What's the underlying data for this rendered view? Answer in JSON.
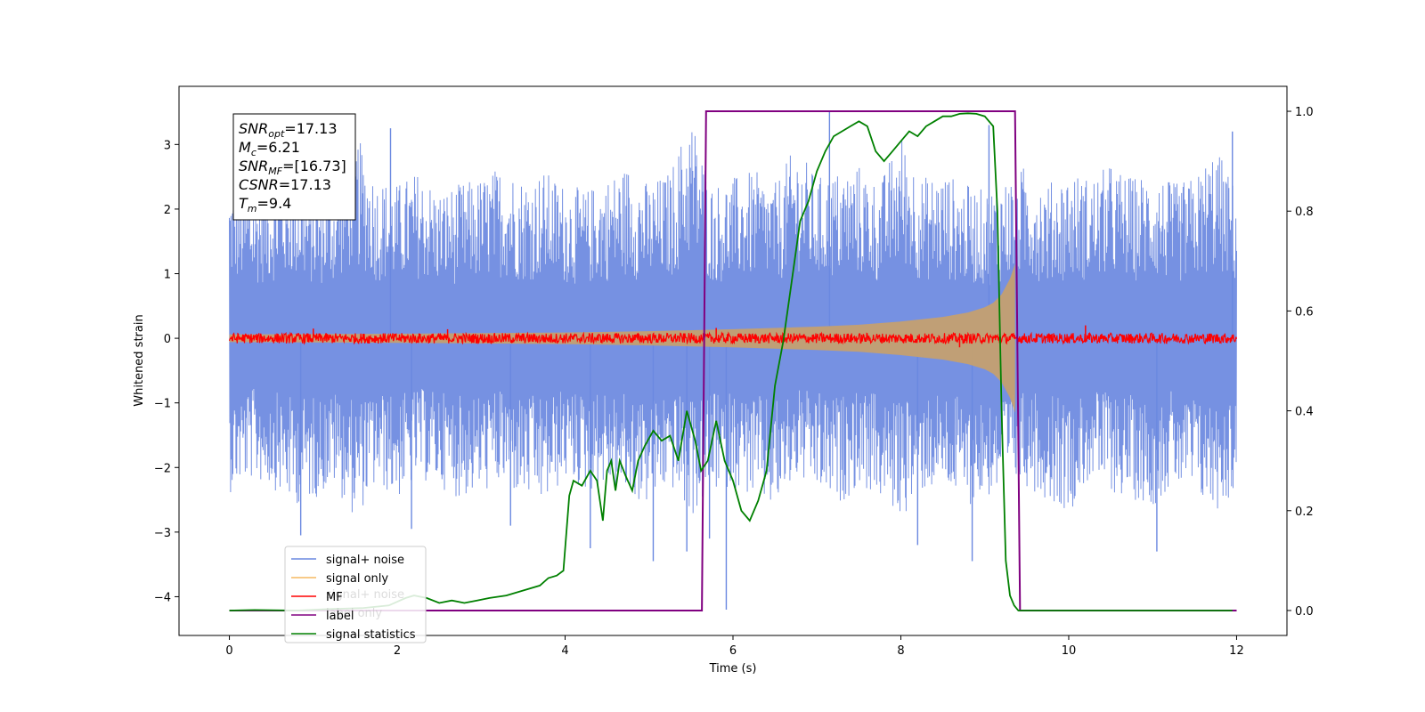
{
  "chart_data": {
    "type": "line",
    "xlabel": "Time (s)",
    "ylabel": "Whitened strain",
    "xlim": [
      -0.6,
      12.6
    ],
    "ylim": [
      -4.6,
      3.9
    ],
    "y2lim": [
      -0.05,
      1.05
    ],
    "x_ticks": [
      0,
      2,
      4,
      6,
      8,
      10,
      12
    ],
    "y_ticks": [
      -4,
      -3,
      -2,
      -1,
      0,
      1,
      2,
      3
    ],
    "y2_ticks": [
      0.0,
      0.2,
      0.4,
      0.6,
      0.8,
      1.0
    ],
    "x_tick_labels": [
      "0",
      "2",
      "4",
      "6",
      "8",
      "10",
      "12"
    ],
    "y_tick_labels": [
      "−4",
      "−3",
      "−2",
      "−1",
      "0",
      "1",
      "2",
      "3"
    ],
    "y2_tick_labels": [
      "0.0",
      "0.2",
      "0.4",
      "0.6",
      "0.8",
      "1.0"
    ],
    "grid": false,
    "legend_position": "lower-left",
    "colors": {
      "signal_noise": "#6a88e0",
      "signal_only": "#f5b860",
      "signal_only_fill": "#c4a070",
      "mf": "#ff0000",
      "label": "#800080",
      "signal_statistics": "#008000"
    },
    "series": [
      {
        "name": "signal+ noise",
        "axis": "left",
        "x_range": [
          0,
          12
        ],
        "band_min": [
          -2.4,
          -2.2,
          -2.3,
          -2.6,
          -2.5,
          -2.3,
          -2.8,
          -2.3,
          -2.5,
          -2.2,
          -2.3,
          -2.5,
          -2.4,
          -2.3,
          -2.5,
          -2.6,
          -2.2,
          -2.4,
          -2.3,
          -2.5,
          -2.6,
          -2.3,
          -2.8,
          -2.4,
          -2.3,
          -2.5,
          -2.7,
          -2.2,
          -2.4,
          -2.6,
          -2.3,
          -2.5,
          -2.8,
          -2.4,
          -2.3,
          -2.6,
          -2.5,
          -2.4,
          -2.3,
          -2.5,
          -2.7,
          -2.2,
          -2.4,
          -2.5,
          -2.6,
          -2.3,
          -2.5,
          -2.7,
          -2.4
        ],
        "band_max": [
          2.4,
          2.3,
          2.5,
          2.6,
          2.3,
          2.4,
          3.2,
          2.5,
          2.4,
          2.6,
          2.3,
          2.4,
          2.5,
          2.7,
          2.5,
          2.6,
          2.4,
          2.3,
          2.5,
          2.7,
          2.4,
          2.6,
          3.5,
          2.4,
          2.5,
          2.6,
          2.4,
          3.0,
          2.5,
          2.6,
          2.7,
          2.4,
          3.2,
          2.5,
          2.6,
          2.4,
          2.3,
          2.5,
          2.7,
          2.4,
          2.6,
          2.5,
          2.7,
          2.5,
          2.6,
          2.4,
          2.5,
          3.0,
          2.3
        ],
        "spikes": [
          {
            "x": 0.85,
            "y": -3.05
          },
          {
            "x": 1.92,
            "y": 3.25
          },
          {
            "x": 2.17,
            "y": -2.95
          },
          {
            "x": 3.35,
            "y": -2.9
          },
          {
            "x": 4.3,
            "y": -3.25
          },
          {
            "x": 5.05,
            "y": -3.45
          },
          {
            "x": 5.45,
            "y": -3.3
          },
          {
            "x": 5.72,
            "y": -3.1
          },
          {
            "x": 5.92,
            "y": -4.2
          },
          {
            "x": 7.15,
            "y": 3.5
          },
          {
            "x": 8.2,
            "y": -3.2
          },
          {
            "x": 8.85,
            "y": -3.45
          },
          {
            "x": 9.05,
            "y": 3.3
          },
          {
            "x": 11.05,
            "y": -3.3
          },
          {
            "x": 11.95,
            "y": 3.2
          }
        ]
      },
      {
        "name": "signal only",
        "axis": "left",
        "x": [
          0,
          2,
          4,
          5,
          6,
          7,
          7.5,
          8,
          8.5,
          8.8,
          9.0,
          9.1,
          9.2,
          9.3,
          9.36
        ],
        "envelope": [
          0.06,
          0.07,
          0.09,
          0.11,
          0.14,
          0.18,
          0.21,
          0.26,
          0.33,
          0.4,
          0.48,
          0.55,
          0.68,
          0.92,
          1.15
        ]
      },
      {
        "name": "MF",
        "axis": "left",
        "x_range": [
          0,
          12
        ],
        "band": 0.08,
        "peaks": [
          {
            "x": 1.0,
            "y": 0.15
          },
          {
            "x": 2.6,
            "y": 0.14
          },
          {
            "x": 5.8,
            "y": 0.16
          },
          {
            "x": 8.7,
            "y": -0.14
          },
          {
            "x": 10.2,
            "y": 0.2
          }
        ]
      },
      {
        "name": "label",
        "axis": "right",
        "x": [
          0,
          5.63,
          5.68,
          9.36,
          9.42,
          12
        ],
        "y": [
          0.0,
          0.0,
          1.0,
          1.0,
          0.0,
          0.0
        ]
      },
      {
        "name": "signal statistics",
        "axis": "right",
        "x": [
          0,
          0.3,
          0.8,
          1.2,
          1.6,
          1.9,
          2.1,
          2.2,
          2.35,
          2.5,
          2.65,
          2.8,
          2.95,
          3.1,
          3.3,
          3.5,
          3.7,
          3.8,
          3.9,
          3.98,
          4.05,
          4.1,
          4.2,
          4.3,
          4.38,
          4.45,
          4.5,
          4.55,
          4.6,
          4.65,
          4.72,
          4.8,
          4.87,
          4.95,
          5.05,
          5.15,
          5.25,
          5.35,
          5.45,
          5.55,
          5.62,
          5.7,
          5.8,
          5.9,
          6.0,
          6.1,
          6.2,
          6.3,
          6.4,
          6.5,
          6.6,
          6.7,
          6.8,
          6.9,
          7.0,
          7.1,
          7.2,
          7.3,
          7.4,
          7.5,
          7.6,
          7.7,
          7.8,
          7.9,
          8.0,
          8.1,
          8.2,
          8.3,
          8.4,
          8.5,
          8.6,
          8.7,
          8.8,
          8.9,
          9.0,
          9.1,
          9.15,
          9.2,
          9.25,
          9.3,
          9.35,
          9.4,
          9.5,
          10,
          11,
          11.95
        ],
        "y": [
          0.0,
          0.001,
          0.0,
          0.003,
          0.005,
          0.01,
          0.025,
          0.03,
          0.025,
          0.015,
          0.02,
          0.015,
          0.02,
          0.025,
          0.03,
          0.04,
          0.05,
          0.065,
          0.07,
          0.08,
          0.23,
          0.26,
          0.25,
          0.28,
          0.26,
          0.18,
          0.28,
          0.3,
          0.24,
          0.3,
          0.27,
          0.24,
          0.3,
          0.33,
          0.36,
          0.34,
          0.35,
          0.3,
          0.4,
          0.34,
          0.28,
          0.3,
          0.38,
          0.3,
          0.26,
          0.2,
          0.18,
          0.22,
          0.28,
          0.45,
          0.54,
          0.66,
          0.78,
          0.82,
          0.88,
          0.92,
          0.95,
          0.96,
          0.97,
          0.98,
          0.97,
          0.92,
          0.9,
          0.92,
          0.94,
          0.96,
          0.95,
          0.97,
          0.98,
          0.99,
          0.99,
          0.995,
          0.996,
          0.995,
          0.99,
          0.97,
          0.8,
          0.4,
          0.1,
          0.03,
          0.01,
          0.0,
          0.0,
          0.0,
          0.0,
          0.0
        ]
      }
    ],
    "legend": [
      {
        "label": "signal+ noise",
        "color": "#6a88e0"
      },
      {
        "label": "signal only",
        "color": "#f5b860"
      },
      {
        "label": "MF",
        "color": "#ff0000"
      },
      {
        "label": "label",
        "color": "#800080"
      },
      {
        "label": "signal statistics",
        "color": "#008000"
      }
    ],
    "ghost_legend": [
      "signal+ noise",
      "label only"
    ],
    "info_box": [
      {
        "sym": "SNR",
        "sub": "opt",
        "val": "=17.13"
      },
      {
        "sym": "M",
        "sub": "c",
        "val": "=6.21"
      },
      {
        "sym": "SNR",
        "sub": "MF",
        "val": "=[16.73]"
      },
      {
        "sym": "CSNR",
        "sub": "",
        "val": "=17.13"
      },
      {
        "sym": "T",
        "sub": "m",
        "val": "=9.4"
      }
    ]
  }
}
